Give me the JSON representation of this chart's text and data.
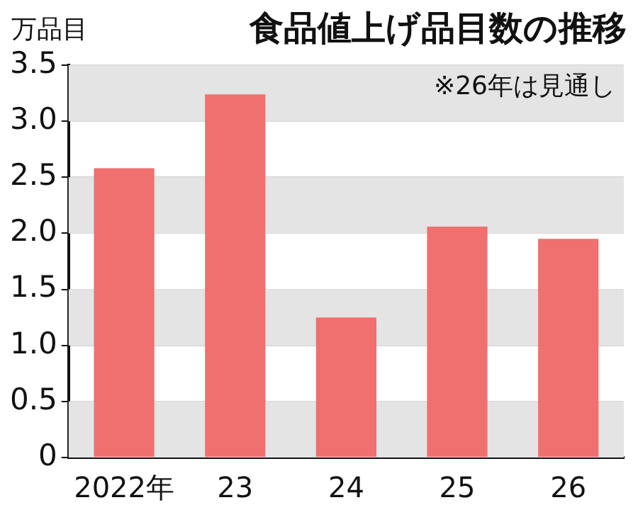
{
  "chart_data": {
    "type": "bar",
    "title": "食品値上げ品目数の推移",
    "ylabel": "万品目",
    "annotations": [
      "※26年は見通し"
    ],
    "categories": [
      "2022年",
      "23",
      "24",
      "25",
      "26"
    ],
    "values": [
      2.58,
      3.24,
      1.25,
      2.06,
      1.95
    ],
    "color": "#f07070",
    "ylim": [
      0,
      3.5
    ],
    "yticks": [
      0,
      {
        "value": 0.5,
        "label": "0.5"
      },
      {
        "value": 1,
        "label": "1.0"
      },
      {
        "value": 1.5,
        "label": "1.5"
      },
      {
        "value": 2,
        "label": "2.0"
      },
      {
        "value": 2.5,
        "label": "2.5"
      },
      {
        "value": 3,
        "label": "3.0"
      },
      {
        "value": 3.5,
        "label": "3.5"
      }
    ],
    "grid": "y",
    "legend": false
  }
}
